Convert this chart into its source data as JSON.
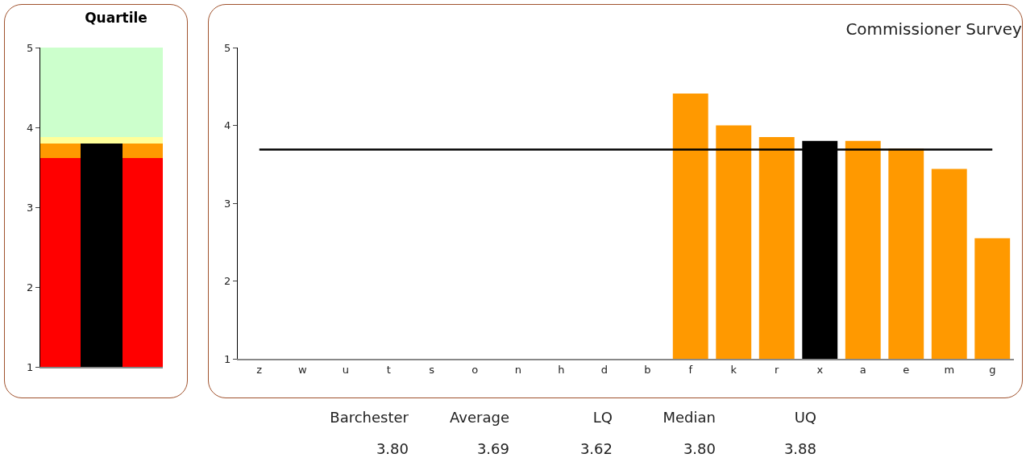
{
  "chart_data": [
    {
      "type": "bar",
      "title": "Quartile",
      "categories": [
        null
      ],
      "ylim": [
        1,
        5
      ],
      "yticks": [
        1,
        2,
        3,
        4,
        5
      ],
      "grid": false,
      "series": [
        {
          "color": "#ff0000",
          "base": [
            1
          ],
          "values": [
            2.62
          ]
        },
        {
          "color": "#ff9900",
          "base": [
            3.62
          ],
          "values": [
            0.18
          ]
        },
        {
          "color": "#ffff99",
          "base": [
            3.8
          ],
          "values": [
            0.08
          ]
        },
        {
          "color": "#ccffcc",
          "base": [
            3.88
          ],
          "values": [
            1.12
          ]
        },
        {
          "color": "#000000",
          "values": [
            3.8
          ]
        }
      ]
    },
    {
      "type": "bar",
      "title": "Commissioner Survey",
      "categories": [
        "z",
        "w",
        "u",
        "t",
        "s",
        "o",
        "n",
        "h",
        "d",
        "b",
        "f",
        "k",
        "r",
        "x",
        "a",
        "e",
        "m",
        "g"
      ],
      "values": [
        null,
        null,
        null,
        null,
        null,
        null,
        null,
        null,
        null,
        null,
        4.41,
        4.0,
        3.85,
        3.8,
        3.8,
        3.7,
        3.44,
        2.55
      ],
      "colors": [
        "#ff9900",
        "#ff9900",
        "#ff9900",
        "#ff9900",
        "#ff9900",
        "#ff9900",
        "#ff9900",
        "#ff9900",
        "#ff9900",
        "#ff9900",
        "#ff9900",
        "#ff9900",
        "#ff9900",
        "#000000",
        "#ff9900",
        "#ff9900",
        "#ff9900",
        "#ff9900"
      ],
      "ylim": [
        1,
        5
      ],
      "yticks": [
        1,
        2,
        3,
        4,
        5
      ],
      "grid": false,
      "ref_lines": [
        {
          "axis": "y",
          "value": 3.69,
          "color": "#000000"
        }
      ],
      "annotations": [
        "Barchester",
        "Average",
        "LQ",
        "Median",
        "UQ",
        "3.80",
        "3.69",
        "3.62",
        "3.80",
        "3.88"
      ]
    }
  ]
}
